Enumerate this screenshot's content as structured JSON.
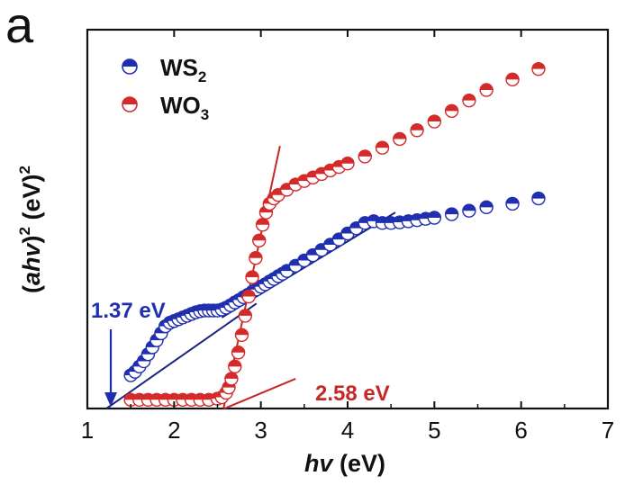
{
  "panel_label": "a",
  "colors": {
    "ws2": "#1f2fb0",
    "wo3": "#d42a2a",
    "ws2_fit": "#1a237e",
    "wo3_fit": "#c62828",
    "axis": "#111111"
  },
  "chart_data": {
    "type": "scatter",
    "title": "",
    "xlabel": "hv (eV)",
    "ylabel": "(ahv)2 (eV)2",
    "xlim": [
      1,
      7
    ],
    "ylim": [
      0,
      100
    ],
    "xticks": [
      "1",
      "2",
      "3",
      "4",
      "5",
      "6",
      "7"
    ],
    "y_tick_labels": false,
    "legend": {
      "position": "top-left",
      "entries": [
        {
          "name": "WS",
          "sub": "2",
          "series": "WS2"
        },
        {
          "name": "WO",
          "sub": "3",
          "series": "WO3"
        }
      ]
    },
    "series": [
      {
        "name": "WS2",
        "color": "#1f2fb0",
        "x": [
          1.5,
          1.55,
          1.6,
          1.65,
          1.7,
          1.75,
          1.8,
          1.85,
          1.9,
          1.95,
          2.0,
          2.05,
          2.1,
          2.15,
          2.2,
          2.25,
          2.3,
          2.35,
          2.4,
          2.45,
          2.5,
          2.55,
          2.6,
          2.65,
          2.7,
          2.75,
          2.8,
          2.85,
          2.9,
          2.95,
          3.0,
          3.05,
          3.1,
          3.15,
          3.2,
          3.25,
          3.3,
          3.4,
          3.5,
          3.6,
          3.7,
          3.8,
          3.9,
          4.0,
          4.1,
          4.2,
          4.3,
          4.4,
          4.5,
          4.6,
          4.7,
          4.8,
          4.9,
          5.0,
          5.2,
          5.4,
          5.6,
          5.9,
          6.2
        ],
        "y": [
          9.5,
          10.5,
          12.0,
          13.5,
          15.5,
          17.5,
          19.5,
          21.5,
          23.5,
          24.5,
          25.0,
          25.5,
          26.0,
          26.5,
          27.0,
          27.5,
          27.8,
          28.0,
          28.0,
          28.0,
          28.0,
          28.3,
          28.8,
          29.5,
          30.3,
          31.0,
          31.8,
          32.5,
          33.3,
          34.0,
          34.8,
          35.5,
          36.3,
          37.0,
          37.8,
          38.5,
          39.3,
          40.8,
          42.3,
          43.8,
          45.3,
          46.8,
          48.3,
          50.0,
          51.5,
          53.0,
          53.5,
          53.0,
          53.0,
          53.2,
          53.5,
          53.8,
          54.2,
          54.5,
          55.5,
          56.5,
          57.5,
          58.5,
          60.0
        ]
      },
      {
        "name": "WO3",
        "color": "#d42a2a",
        "x": [
          1.5,
          1.6,
          1.7,
          1.8,
          1.9,
          2.0,
          2.1,
          2.2,
          2.3,
          2.4,
          2.5,
          2.55,
          2.6,
          2.63,
          2.66,
          2.7,
          2.74,
          2.78,
          2.82,
          2.86,
          2.9,
          2.94,
          2.98,
          3.02,
          3.06,
          3.1,
          3.15,
          3.2,
          3.3,
          3.4,
          3.5,
          3.6,
          3.7,
          3.8,
          3.9,
          4.0,
          4.2,
          4.4,
          4.6,
          4.8,
          5.0,
          5.2,
          5.4,
          5.6,
          5.9,
          6.2
        ],
        "y": [
          2.5,
          2.5,
          2.5,
          2.5,
          2.5,
          2.5,
          2.5,
          2.5,
          2.5,
          2.5,
          2.8,
          3.2,
          4.5,
          6.0,
          8.5,
          12.0,
          16.0,
          21.0,
          26.5,
          32.0,
          37.5,
          43.0,
          48.0,
          52.5,
          56.0,
          58.5,
          60.0,
          61.0,
          62.5,
          64.0,
          65.0,
          66.0,
          67.0,
          68.0,
          69.0,
          70.0,
          72.0,
          74.5,
          77.0,
          79.5,
          82.0,
          85.0,
          88.0,
          91.0,
          94.0,
          97.0
        ]
      }
    ],
    "fits": [
      {
        "name": "WS2-lower-tangent",
        "color": "#1a237e",
        "x": [
          1.22,
          2.95
        ],
        "y": [
          0,
          30
        ]
      },
      {
        "name": "WS2-upper-tangent",
        "color": "#1a237e",
        "x": [
          2.55,
          4.55
        ],
        "y": [
          26,
          56
        ]
      },
      {
        "name": "WO3-steep-tangent",
        "color": "#c62828",
        "x": [
          2.57,
          3.22
        ],
        "y": [
          0,
          75
        ]
      },
      {
        "name": "WO3-baseline-tangent",
        "color": "#c62828",
        "x": [
          2.58,
          3.4
        ],
        "y": [
          0,
          8.5
        ]
      }
    ],
    "annotations": [
      {
        "text": "1.37 eV",
        "color": "#1f2fb0",
        "arrow_to_x": 1.27,
        "arrow_from_y": 23
      },
      {
        "text": "2.58 eV",
        "color": "#c62828"
      }
    ]
  }
}
